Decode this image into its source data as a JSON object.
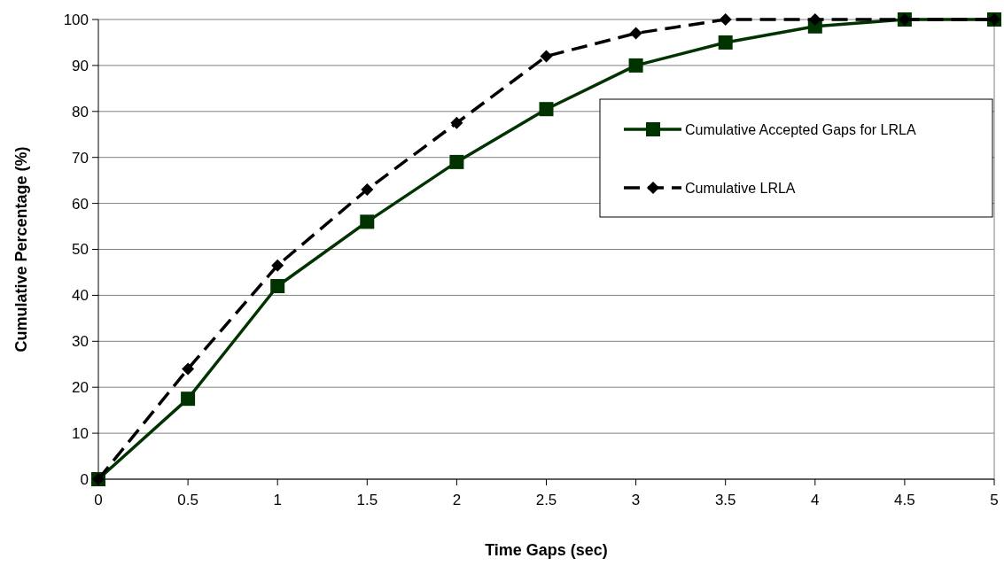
{
  "chart_data": {
    "type": "line",
    "xlabel": "Time Gaps (sec)",
    "ylabel": "Cumulative Percentage (%)",
    "x": [
      0,
      0.5,
      1,
      1.5,
      2,
      2.5,
      3,
      3.5,
      4,
      4.5,
      5
    ],
    "xlim": [
      0,
      5
    ],
    "xticks": [
      0,
      0.5,
      1,
      1.5,
      2,
      2.5,
      3,
      3.5,
      4,
      4.5,
      5
    ],
    "ylim": [
      0,
      100
    ],
    "yticks": [
      0,
      10,
      20,
      30,
      40,
      50,
      60,
      70,
      80,
      90,
      100
    ],
    "grid": "y",
    "legend": "right",
    "series": [
      {
        "name": "Cumulative Accepted Gaps for LRLA",
        "color": "#003300",
        "marker": "square",
        "line_style": "solid",
        "values": [
          0,
          17.5,
          42,
          56,
          69,
          80.5,
          90,
          95,
          98.5,
          100,
          100
        ]
      },
      {
        "name": "Cumulative LRLA",
        "color": "#000000",
        "marker": "diamond",
        "line_style": "dashed",
        "values": [
          0,
          24,
          46.5,
          63,
          77.5,
          92,
          97,
          100,
          100,
          100,
          100
        ]
      }
    ]
  }
}
